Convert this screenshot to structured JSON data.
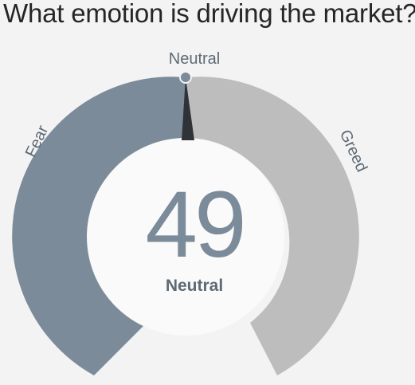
{
  "title": "What emotion is driving the market?",
  "gauge": {
    "value": "49",
    "rating": "Neutral",
    "top_label": "Neutral",
    "left_label": "Fear",
    "right_label": "Greed"
  },
  "colors": {
    "background": "#f3f3f3",
    "fear": "#7b8b9a",
    "greed": "#bdbdbd",
    "center_circle": "#fafafa",
    "value_text": "#7b8b9a",
    "label_text": "#5f6a74",
    "needle": "#2f3337",
    "marker": "#7b8b9a"
  }
}
